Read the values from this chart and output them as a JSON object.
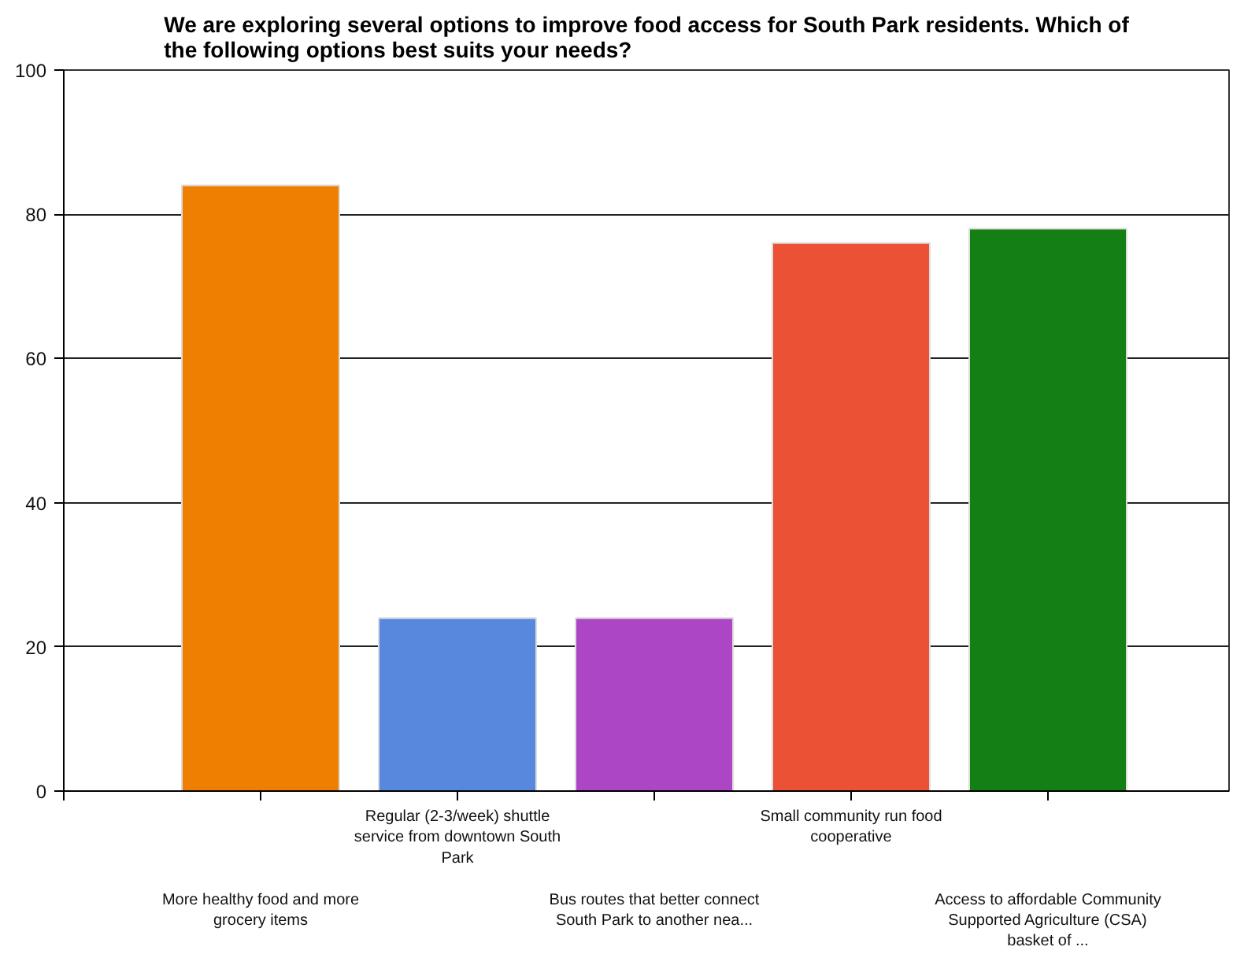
{
  "chart_data": {
    "type": "bar",
    "title": "We are exploring several options to improve food access for South Park residents. Which of the following options best suits your needs?",
    "categories": [
      "More healthy food and more grocery items",
      "Regular (2-3/week) shuttle service from downtown South Park",
      "Bus routes that better connect South Park to another nea...",
      "Small community run food cooperative",
      "Access to affordable Community Supported Agriculture (CSA) basket of ..."
    ],
    "values": [
      84,
      24,
      24,
      76,
      78
    ],
    "colors": [
      "#ee7f00",
      "#5788dd",
      "#ac46c4",
      "#eb5135",
      "#147f14"
    ],
    "ylim": [
      0,
      100
    ],
    "yticks": [
      0,
      20,
      40,
      60,
      80,
      100
    ],
    "grid": "y"
  }
}
